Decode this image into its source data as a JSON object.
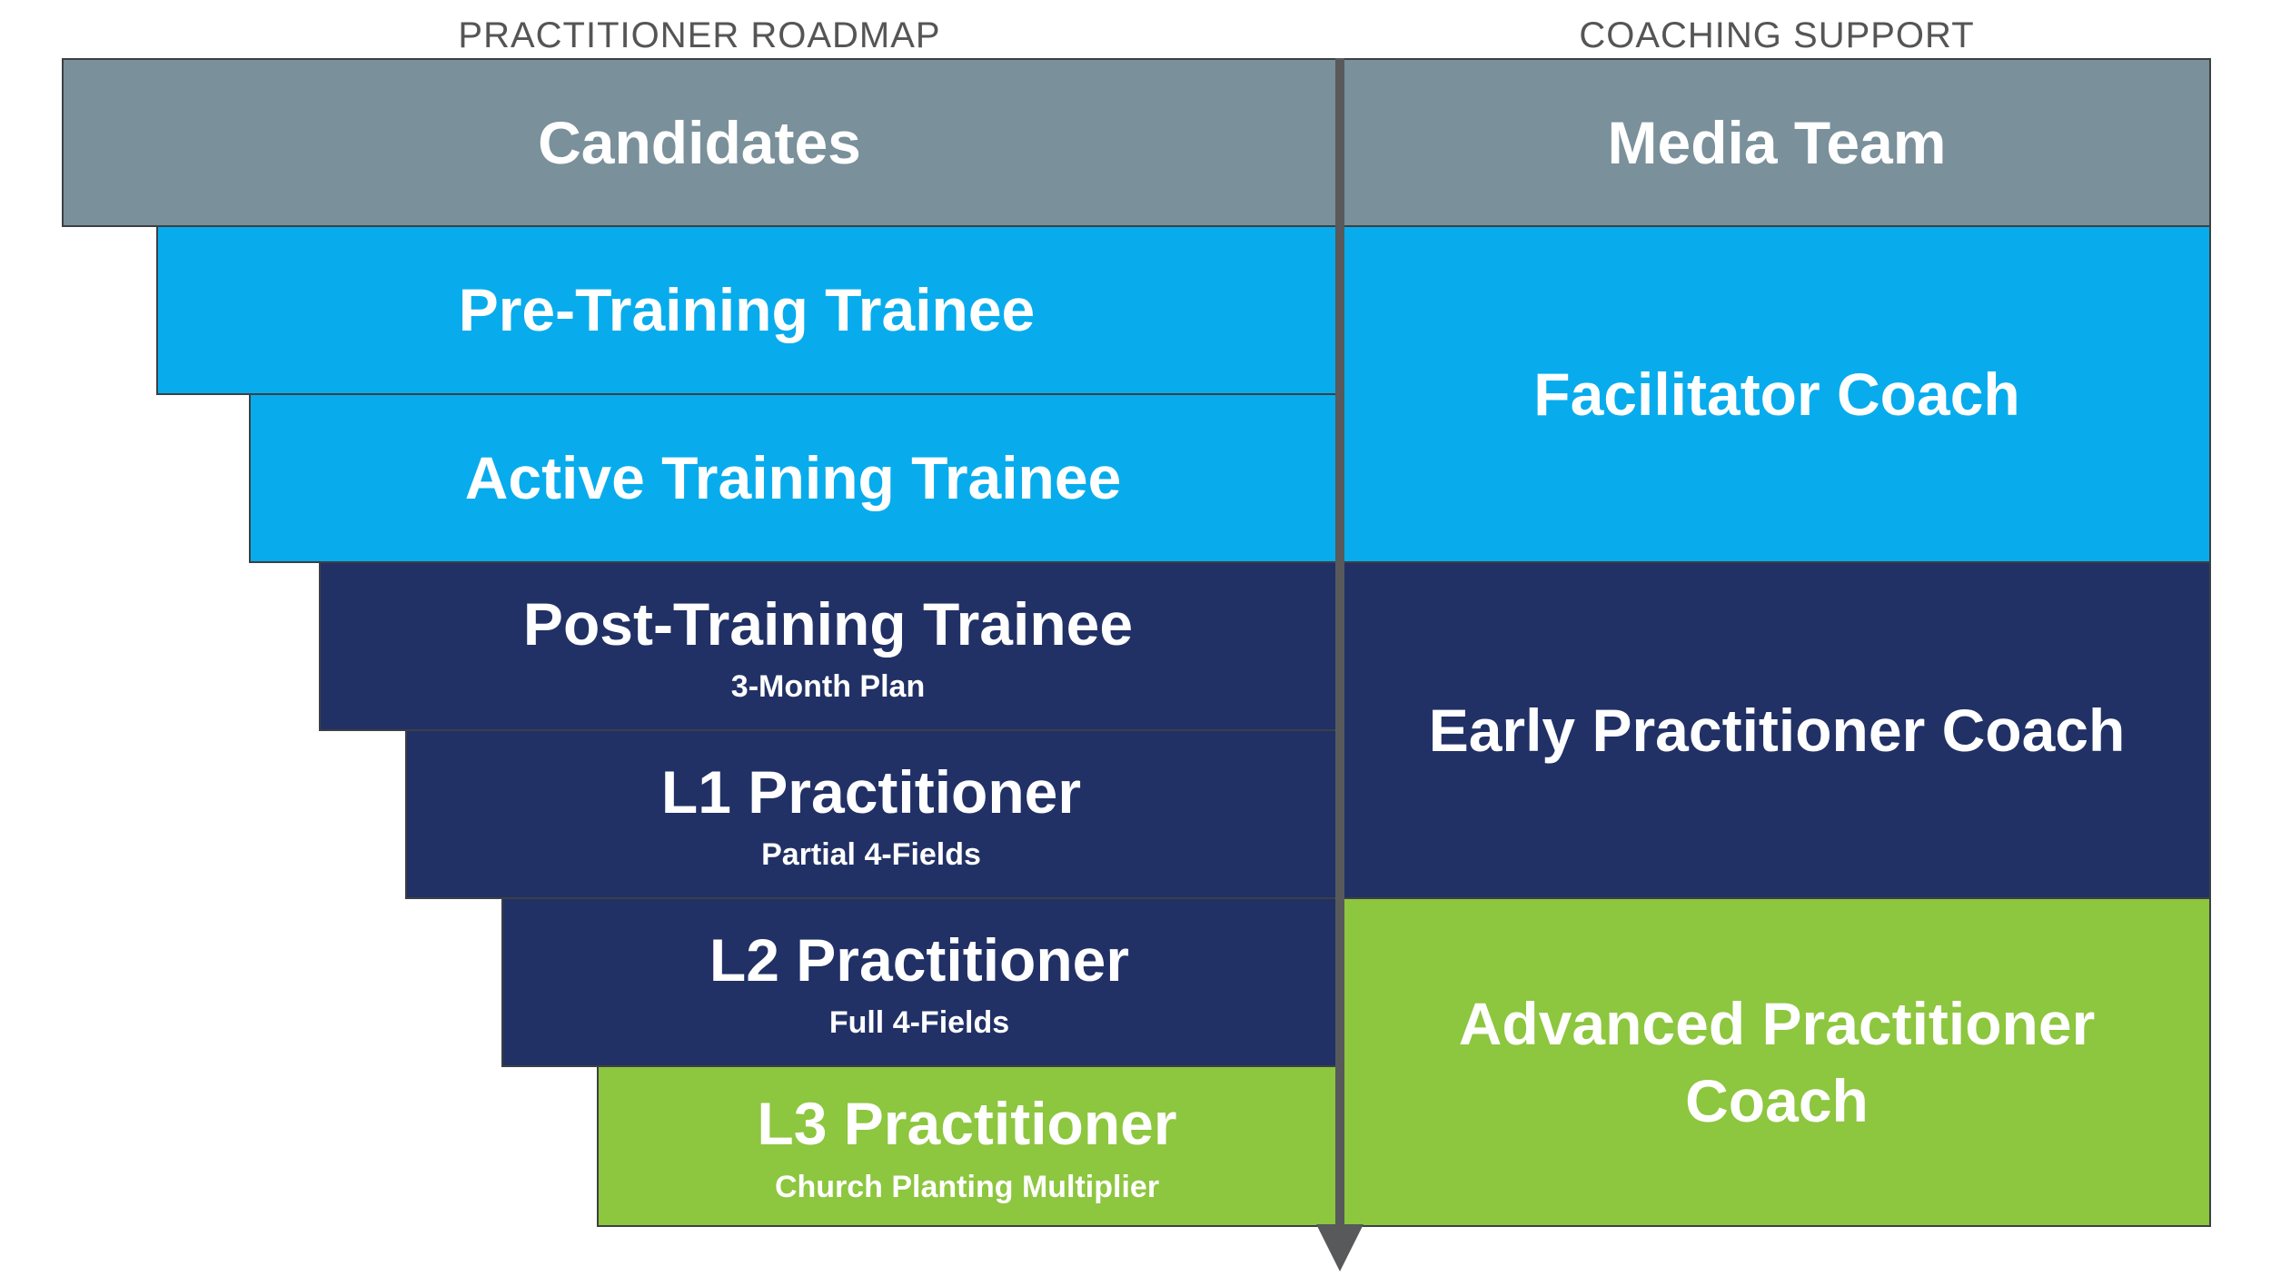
{
  "headers": {
    "roadmap": "PRACTITIONER ROADMAP",
    "coaching": "COACHING SUPPORT"
  },
  "roadmap": [
    {
      "title": "Candidates",
      "subtitle": ""
    },
    {
      "title": "Pre-Training Trainee",
      "subtitle": ""
    },
    {
      "title": "Active Training Trainee",
      "subtitle": ""
    },
    {
      "title": "Post-Training Trainee",
      "subtitle": "3-Month Plan"
    },
    {
      "title": "L1 Practitioner",
      "subtitle": "Partial 4-Fields"
    },
    {
      "title": "L2 Practitioner",
      "subtitle": "Full 4-Fields"
    },
    {
      "title": "L3 Practitioner",
      "subtitle": "Church Planting Multiplier"
    }
  ],
  "coaching": [
    {
      "title": "Media Team"
    },
    {
      "title": "Facilitator Coach"
    },
    {
      "title": "Early Practitioner Coach"
    },
    {
      "title": "Advanced Practitioner Coach"
    }
  ],
  "colors": {
    "gray": "#7a909b",
    "sky": "#08acec",
    "navy": "#213166",
    "green": "#8dc63f",
    "divider": "#58595b"
  }
}
